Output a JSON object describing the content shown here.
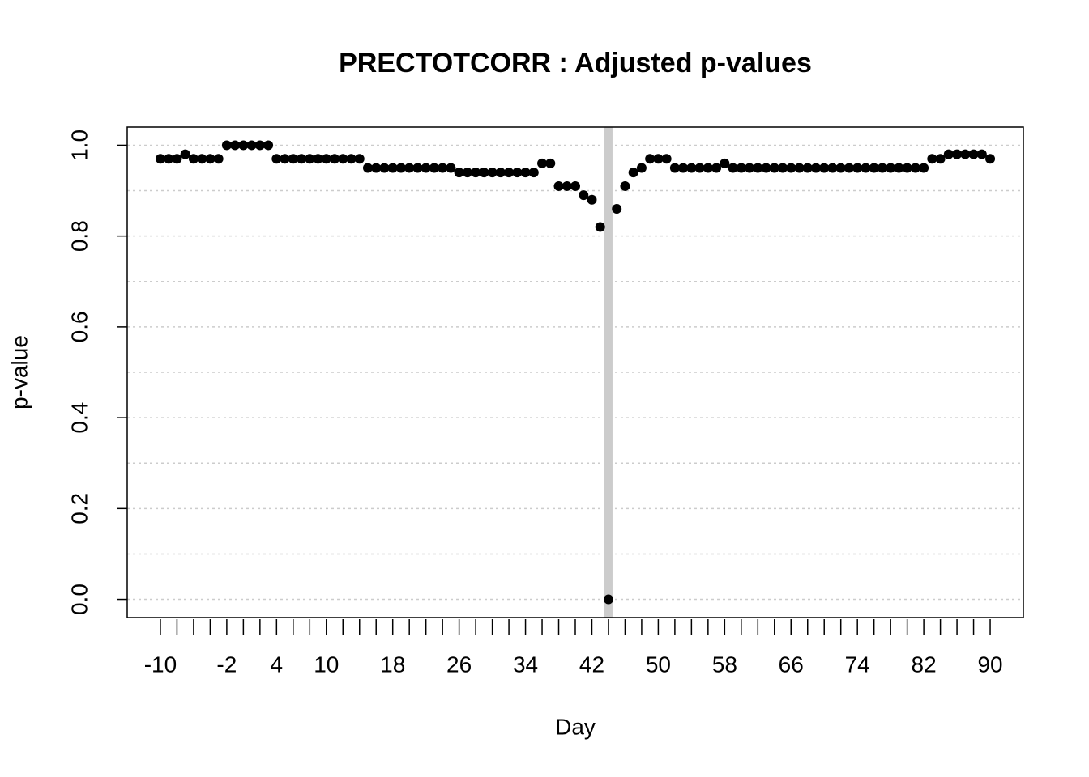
{
  "chart_data": {
    "type": "scatter",
    "title": "PRECTOTCORR : Adjusted p-values",
    "x_label": "Day",
    "y_label": "p-value",
    "x": [
      -10,
      -9,
      -8,
      -7,
      -6,
      -5,
      -4,
      -3,
      -2,
      -1,
      0,
      1,
      2,
      3,
      4,
      5,
      6,
      7,
      8,
      9,
      10,
      11,
      12,
      13,
      14,
      15,
      16,
      17,
      18,
      19,
      20,
      21,
      22,
      23,
      24,
      25,
      26,
      27,
      28,
      29,
      30,
      31,
      32,
      33,
      34,
      35,
      36,
      37,
      38,
      39,
      40,
      41,
      42,
      43,
      44,
      45,
      46,
      47,
      48,
      49,
      50,
      51,
      52,
      53,
      54,
      55,
      56,
      57,
      58,
      59,
      60,
      61,
      62,
      63,
      64,
      65,
      66,
      67,
      68,
      69,
      70,
      71,
      72,
      73,
      74,
      75,
      76,
      77,
      78,
      79,
      80,
      81,
      82,
      83,
      84,
      85,
      86,
      87,
      88,
      89,
      90
    ],
    "values": [
      0.97,
      0.97,
      0.97,
      0.98,
      0.97,
      0.97,
      0.97,
      0.97,
      1.0,
      1.0,
      1.0,
      1.0,
      1.0,
      1.0,
      0.97,
      0.97,
      0.97,
      0.97,
      0.97,
      0.97,
      0.97,
      0.97,
      0.97,
      0.97,
      0.97,
      0.95,
      0.95,
      0.95,
      0.95,
      0.95,
      0.95,
      0.95,
      0.95,
      0.95,
      0.95,
      0.95,
      0.94,
      0.94,
      0.94,
      0.94,
      0.94,
      0.94,
      0.94,
      0.94,
      0.94,
      0.94,
      0.96,
      0.96,
      0.91,
      0.91,
      0.91,
      0.89,
      0.88,
      0.82,
      0,
      0.86,
      0.91,
      0.94,
      0.95,
      0.97,
      0.97,
      0.97,
      0.95,
      0.95,
      0.95,
      0.95,
      0.95,
      0.95,
      0.96,
      0.95,
      0.95,
      0.95,
      0.95,
      0.95,
      0.95,
      0.95,
      0.95,
      0.95,
      0.95,
      0.95,
      0.95,
      0.95,
      0.95,
      0.95,
      0.95,
      0.95,
      0.95,
      0.95,
      0.95,
      0.95,
      0.95,
      0.95,
      0.95,
      0.97,
      0.97,
      0.98,
      0.98,
      0.98,
      0.98,
      0.98,
      0.97
    ],
    "color": "#000000",
    "vline": 44,
    "vline_color": "#cccccc",
    "xlim": [
      -14,
      94
    ],
    "ylim": [
      -0.04,
      1.04
    ],
    "xticks": [
      -10,
      -2,
      4,
      10,
      18,
      26,
      34,
      42,
      50,
      58,
      66,
      74,
      82,
      90
    ],
    "xtick_marks": [
      -10,
      -8,
      -6,
      -4,
      -2,
      0,
      2,
      4,
      6,
      8,
      10,
      12,
      14,
      16,
      18,
      20,
      22,
      24,
      26,
      28,
      30,
      32,
      34,
      36,
      38,
      40,
      42,
      44,
      46,
      48,
      50,
      52,
      54,
      56,
      58,
      60,
      62,
      64,
      66,
      68,
      70,
      72,
      74,
      76,
      78,
      80,
      82,
      84,
      86,
      88,
      90
    ],
    "yticks": [
      {
        "value": 0,
        "label": "0.0"
      },
      0.2,
      0.4,
      0.6,
      0.8,
      {
        "value": 1,
        "label": "1.0"
      }
    ],
    "y_grid": [
      0,
      0.1,
      0.2,
      0.3,
      0.4,
      0.5,
      0.6,
      0.7,
      0.8,
      0.9,
      1.0
    ],
    "grid": true
  }
}
